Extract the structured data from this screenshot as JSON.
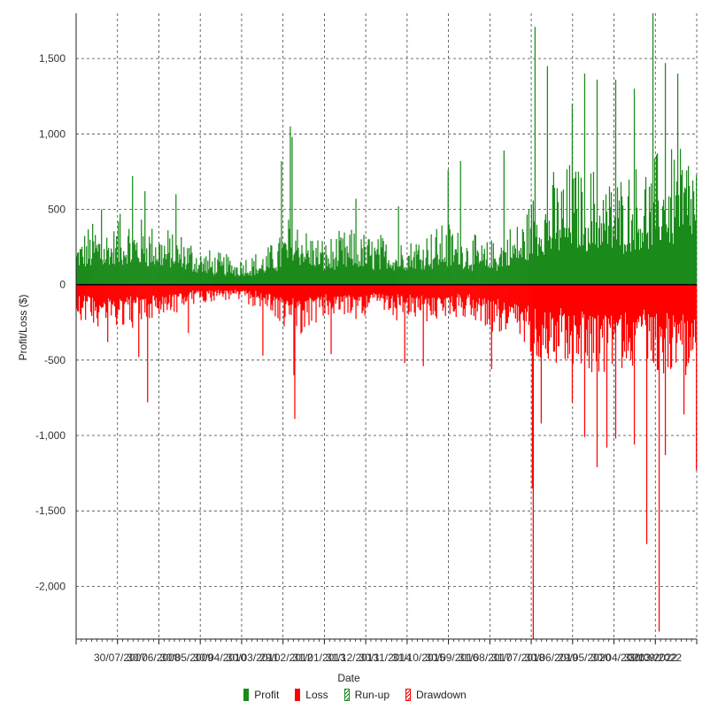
{
  "chart_data": {
    "type": "bar",
    "xlabel": "Date",
    "ylabel": "Profit/Loss ($)",
    "ylim": [
      -2350,
      1800
    ],
    "y_ticks": [
      1500,
      1000,
      500,
      0,
      -500,
      -1000,
      -1500,
      -2000
    ],
    "y_tick_labels": [
      "1,500",
      "1,000",
      "500",
      "0",
      "-500",
      "-1,000",
      "-1,500",
      "-2,000"
    ],
    "x_tick_labels": [
      "30/07/2007",
      "30/06/2008",
      "30/05/2009",
      "30/04/2010",
      "30/03/2011",
      "29/02/2012",
      "31/01/2013",
      "31/12/2013",
      "30/11/2014",
      "31/10/2015",
      "30/09/2016",
      "31/08/2017",
      "31/07/2018",
      "30/06/2019",
      "29/05/2020",
      "30/04/2021",
      "31/03/2022",
      "30/09/2022"
    ],
    "grid": true,
    "legend_position": "bottom",
    "bar_count": 700,
    "series": [
      {
        "name": "Profit",
        "color": "#1a8a1a",
        "envelope": [
          [
            0,
            240
          ],
          [
            0.03,
            330
          ],
          [
            0.06,
            300
          ],
          [
            0.08,
            350
          ],
          [
            0.12,
            320
          ],
          [
            0.15,
            280
          ],
          [
            0.18,
            250
          ],
          [
            0.2,
            190
          ],
          [
            0.23,
            160
          ],
          [
            0.26,
            150
          ],
          [
            0.3,
            170
          ],
          [
            0.33,
            260
          ],
          [
            0.35,
            400
          ],
          [
            0.37,
            300
          ],
          [
            0.4,
            230
          ],
          [
            0.44,
            280
          ],
          [
            0.47,
            260
          ],
          [
            0.5,
            250
          ],
          [
            0.53,
            240
          ],
          [
            0.56,
            280
          ],
          [
            0.6,
            320
          ],
          [
            0.63,
            270
          ],
          [
            0.66,
            210
          ],
          [
            0.7,
            300
          ],
          [
            0.72,
            350
          ],
          [
            0.74,
            500
          ],
          [
            0.77,
            560
          ],
          [
            0.8,
            620
          ],
          [
            0.83,
            600
          ],
          [
            0.87,
            550
          ],
          [
            0.9,
            600
          ],
          [
            0.93,
            650
          ],
          [
            0.96,
            700
          ],
          [
            1,
            720
          ]
        ],
        "spikes": [
          [
            0.04,
            500
          ],
          [
            0.07,
            470
          ],
          [
            0.09,
            720
          ],
          [
            0.11,
            620
          ],
          [
            0.16,
            600
          ],
          [
            0.33,
            820
          ],
          [
            0.345,
            1050
          ],
          [
            0.347,
            980
          ],
          [
            0.45,
            570
          ],
          [
            0.52,
            520
          ],
          [
            0.6,
            760
          ],
          [
            0.62,
            820
          ],
          [
            0.69,
            890
          ],
          [
            0.74,
            1710
          ],
          [
            0.76,
            1450
          ],
          [
            0.8,
            1200
          ],
          [
            0.82,
            1400
          ],
          [
            0.84,
            1360
          ],
          [
            0.87,
            1360
          ],
          [
            0.9,
            1300
          ],
          [
            0.93,
            1800
          ],
          [
            0.95,
            1470
          ],
          [
            0.97,
            1400
          ]
        ]
      },
      {
        "name": "Loss",
        "color": "#ff0000",
        "envelope": [
          [
            0,
            -170
          ],
          [
            0.03,
            -200
          ],
          [
            0.06,
            -220
          ],
          [
            0.1,
            -210
          ],
          [
            0.13,
            -180
          ],
          [
            0.16,
            -140
          ],
          [
            0.2,
            -90
          ],
          [
            0.25,
            -80
          ],
          [
            0.3,
            -120
          ],
          [
            0.33,
            -200
          ],
          [
            0.36,
            -260
          ],
          [
            0.4,
            -170
          ],
          [
            0.44,
            -180
          ],
          [
            0.48,
            -140
          ],
          [
            0.52,
            -180
          ],
          [
            0.56,
            -190
          ],
          [
            0.6,
            -180
          ],
          [
            0.63,
            -160
          ],
          [
            0.67,
            -230
          ],
          [
            0.7,
            -290
          ],
          [
            0.74,
            -360
          ],
          [
            0.77,
            -400
          ],
          [
            0.8,
            -430
          ],
          [
            0.84,
            -440
          ],
          [
            0.88,
            -440
          ],
          [
            0.92,
            -420
          ],
          [
            0.96,
            -460
          ],
          [
            1,
            -480
          ]
        ],
        "spikes": [
          [
            0.05,
            -380
          ],
          [
            0.1,
            -480
          ],
          [
            0.115,
            -780
          ],
          [
            0.18,
            -320
          ],
          [
            0.3,
            -470
          ],
          [
            0.35,
            -600
          ],
          [
            0.352,
            -890
          ],
          [
            0.41,
            -460
          ],
          [
            0.53,
            -520
          ],
          [
            0.56,
            -540
          ],
          [
            0.67,
            -560
          ],
          [
            0.735,
            -1350
          ],
          [
            0.737,
            -2350
          ],
          [
            0.75,
            -920
          ],
          [
            0.8,
            -780
          ],
          [
            0.82,
            -1010
          ],
          [
            0.84,
            -1210
          ],
          [
            0.855,
            -1080
          ],
          [
            0.87,
            -1020
          ],
          [
            0.9,
            -1060
          ],
          [
            0.92,
            -1720
          ],
          [
            0.94,
            -2300
          ],
          [
            0.95,
            -1130
          ],
          [
            0.98,
            -860
          ],
          [
            1,
            -1230
          ]
        ]
      },
      {
        "name": "Run-up",
        "color": "#1a8a1a",
        "values": []
      },
      {
        "name": "Drawdown",
        "color": "#ff0000",
        "values": []
      }
    ]
  }
}
